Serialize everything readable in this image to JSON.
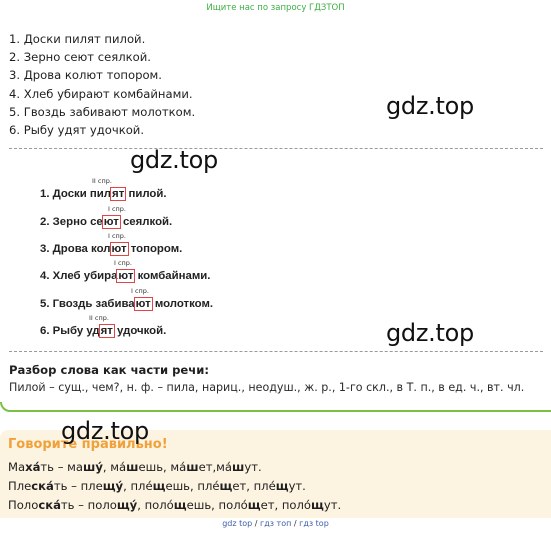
{
  "banner": "Ищите нас по запросу ГДЗТОП",
  "tasks": [
    "1. Доски пилят пилой.",
    "2. Зерно сеют сеялкой.",
    "3. Дрова колют топором.",
    "4. Хлеб убирают комбайнами.",
    "5. Гвоздь забивают молотком.",
    "6. Рыбу удят удочкой."
  ],
  "watermark": "gdz.top",
  "handwritten": [
    {
      "note": "II спр.",
      "pre": "1. Доски пил",
      "ending": "ят",
      "post": " пилой."
    },
    {
      "note": "I спр.",
      "pre": "2. Зерно се",
      "ending": "ют",
      "post": " сеялкой."
    },
    {
      "note": "I спр.",
      "pre": "3. Дрова кол",
      "ending": "ют",
      "post": " топором."
    },
    {
      "note": "I спр.",
      "pre": "4. Хлеб убира",
      "ending": "ют",
      "post": " комбайнами."
    },
    {
      "note": "I спр.",
      "pre": "5. Гвоздь забива",
      "ending": "ют",
      "post": " молотком."
    },
    {
      "note": "II спр.",
      "pre": "6. Рыбу уд",
      "ending": "ят",
      "post": " удочкой."
    }
  ],
  "analysis": {
    "title": "Разбор слова как части речи:",
    "text": "Пилой – сущ., чем?, н. ф. – пила, нариц., неодуш., ж. р., 1-го скл., в Т. п., в ед. ч., вт. чл."
  },
  "speak": {
    "title": "Говорите правильно!",
    "lines": [
      [
        [
          "Ма",
          ""
        ],
        [
          "ха́",
          "b"
        ],
        [
          "ть – ма",
          ""
        ],
        [
          "шу́",
          "b"
        ],
        [
          ", ма́",
          ""
        ],
        [
          "ш",
          "b"
        ],
        [
          "ешь, ма́",
          ""
        ],
        [
          "ш",
          "b"
        ],
        [
          "ет,ма́",
          ""
        ],
        [
          "ш",
          "b"
        ],
        [
          "ут.",
          ""
        ]
      ],
      [
        [
          "Пле",
          ""
        ],
        [
          "ска́",
          "b"
        ],
        [
          "ть – пле",
          ""
        ],
        [
          "щу́",
          "b"
        ],
        [
          ", пле́",
          ""
        ],
        [
          "щ",
          "b"
        ],
        [
          "ешь, пле́",
          ""
        ],
        [
          "щ",
          "b"
        ],
        [
          "ет, пле́",
          ""
        ],
        [
          "щ",
          "b"
        ],
        [
          "ут.",
          ""
        ]
      ],
      [
        [
          "Поло",
          ""
        ],
        [
          "ска́",
          "b"
        ],
        [
          "ть – поло",
          ""
        ],
        [
          "щу́",
          "b"
        ],
        [
          ", поло́",
          ""
        ],
        [
          "щ",
          "b"
        ],
        [
          "ешь, поло́",
          ""
        ],
        [
          "щ",
          "b"
        ],
        [
          "ет, поло́",
          ""
        ],
        [
          "щ",
          "b"
        ],
        [
          "ут.",
          ""
        ]
      ]
    ]
  },
  "footer": [
    "gdz top",
    "гдз топ",
    "гдз top"
  ]
}
